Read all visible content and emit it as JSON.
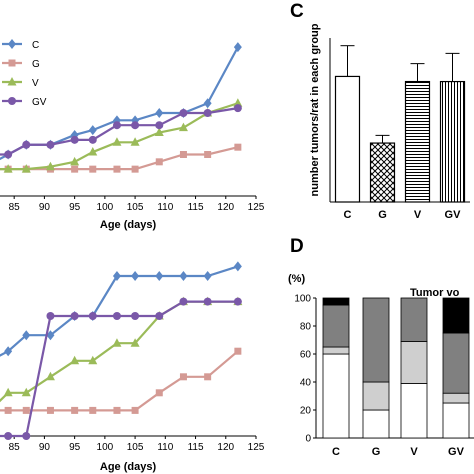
{
  "chart_data": [
    {
      "panel": "",
      "type": "line",
      "xlabel": "Age (days)",
      "ylabel": "",
      "xlim": [
        81,
        125
      ],
      "ylim": [
        0,
        3.4
      ],
      "xticks": [
        "85",
        "90",
        "95",
        "100",
        "105",
        "110",
        "115",
        "120",
        "125"
      ],
      "legend": {
        "placement": "top-left",
        "entries": [
          "C",
          "G",
          "V",
          "GV"
        ]
      },
      "series": [
        {
          "name": "C",
          "color": "#5b87c5",
          "marker": "diamond",
          "x": [
            81,
            84,
            87,
            91,
            95,
            98,
            102,
            105,
            109,
            113,
            117,
            122
          ],
          "y": [
            0.65,
            0.85,
            1.05,
            1.05,
            1.25,
            1.35,
            1.55,
            1.55,
            1.7,
            1.7,
            1.9,
            3.05
          ]
        },
        {
          "name": "G",
          "color": "#d49a94",
          "marker": "square",
          "x": [
            81,
            84,
            87,
            91,
            95,
            98,
            102,
            105,
            109,
            113,
            117,
            122
          ],
          "y": [
            0.55,
            0.55,
            0.55,
            0.55,
            0.55,
            0.55,
            0.55,
            0.55,
            0.7,
            0.85,
            0.85,
            1.0
          ]
        },
        {
          "name": "V",
          "color": "#9bbb59",
          "marker": "triangle",
          "x": [
            81,
            84,
            87,
            91,
            95,
            98,
            102,
            105,
            109,
            113,
            117,
            122
          ],
          "y": [
            0.55,
            0.55,
            0.55,
            0.6,
            0.7,
            0.9,
            1.1,
            1.1,
            1.3,
            1.4,
            1.7,
            1.9
          ]
        },
        {
          "name": "GV",
          "color": "#7a58a8",
          "marker": "circle",
          "x": [
            81,
            84,
            87,
            91,
            95,
            98,
            102,
            105,
            109,
            113,
            117,
            122
          ],
          "y": [
            0.85,
            0.85,
            1.05,
            1.05,
            1.15,
            1.15,
            1.45,
            1.45,
            1.45,
            1.7,
            1.7,
            1.8
          ]
        }
      ]
    },
    {
      "panel": "",
      "type": "line",
      "xlabel": "Age (days)",
      "ylabel": "",
      "xlim": [
        81,
        125
      ],
      "ylim": [
        0,
        110
      ],
      "xticks": [
        "85",
        "90",
        "95",
        "100",
        "105",
        "110",
        "115",
        "120",
        "125"
      ],
      "series": [
        {
          "name": "C",
          "color": "#5b87c5",
          "marker": "diamond",
          "x": [
            81,
            84,
            87,
            91,
            95,
            98,
            102,
            105,
            109,
            113,
            117,
            122
          ],
          "y": [
            47,
            53,
            63,
            63,
            75,
            75,
            100,
            100,
            100,
            100,
            100,
            106
          ]
        },
        {
          "name": "G",
          "color": "#d49a94",
          "marker": "square",
          "x": [
            81,
            84,
            87,
            91,
            95,
            98,
            102,
            105,
            109,
            113,
            117,
            122
          ],
          "y": [
            16,
            16,
            16,
            16,
            16,
            16,
            16,
            16,
            27,
            37,
            37,
            53
          ]
        },
        {
          "name": "V",
          "color": "#9bbb59",
          "marker": "triangle",
          "x": [
            81,
            84,
            87,
            91,
            95,
            98,
            102,
            105,
            109,
            113,
            117,
            122
          ],
          "y": [
            16,
            27,
            27,
            37,
            47,
            47,
            58,
            58,
            75,
            84,
            84,
            84
          ]
        },
        {
          "name": "GV",
          "color": "#7a58a8",
          "marker": "circle",
          "x": [
            81,
            84,
            87,
            91,
            95,
            98,
            102,
            105,
            109,
            113,
            117,
            122
          ],
          "y": [
            0,
            0,
            0,
            75,
            75,
            75,
            75,
            75,
            75,
            84,
            84,
            84
          ]
        }
      ]
    },
    {
      "panel": "C",
      "type": "bar",
      "ylabel": "number tumors/rat in each group",
      "ylim": [
        0,
        3.2
      ],
      "categories": [
        "C",
        "G",
        "V",
        "GV"
      ],
      "values": [
        2.45,
        1.15,
        2.35,
        2.35
      ],
      "errors": [
        0.6,
        0.15,
        0.35,
        0.55
      ],
      "patterns": [
        "white",
        "crosshatch",
        "horizontal-lines",
        "vertical-lines"
      ]
    },
    {
      "panel": "D",
      "type": "bar",
      "stacked": true,
      "ylabel": "(%)",
      "legend_title": "Tumor vo",
      "ylim": [
        0,
        100
      ],
      "yticks": [
        "0",
        "20",
        "40",
        "60",
        "80",
        "100"
      ],
      "categories": [
        "C",
        "G",
        "V",
        "GV"
      ],
      "series": [
        {
          "color": "#ffffff",
          "values": [
            60,
            20,
            39,
            25
          ]
        },
        {
          "color": "#cfcfcf",
          "values": [
            5,
            20,
            30,
            7
          ]
        },
        {
          "color": "#808080",
          "values": [
            30,
            60,
            31,
            43
          ]
        },
        {
          "color": "#000000",
          "values": [
            5,
            0,
            0,
            25
          ]
        }
      ]
    }
  ]
}
